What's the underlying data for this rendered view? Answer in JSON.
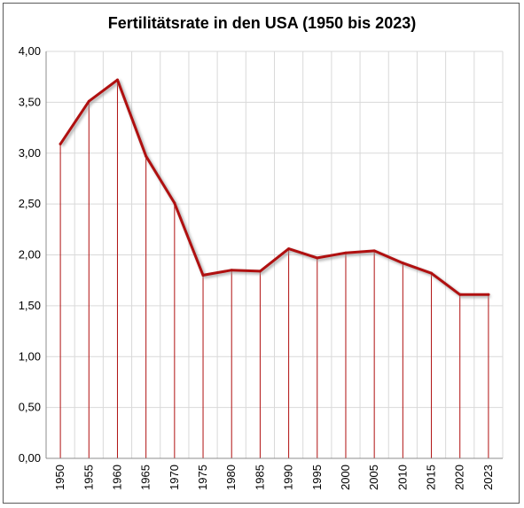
{
  "chart_data": {
    "type": "line",
    "title": "Fertilitätsrate in den USA (1950 bis 2023)",
    "xlabel": "",
    "ylabel": "",
    "categories": [
      "1950",
      "1955",
      "1960",
      "1965",
      "1970",
      "1975",
      "1980",
      "1985",
      "1990",
      "1995",
      "2000",
      "2005",
      "2010",
      "2015",
      "2020",
      "2023"
    ],
    "series": [
      {
        "values": [
          3.09,
          3.51,
          3.72,
          2.97,
          2.51,
          1.8,
          1.85,
          1.84,
          2.06,
          1.97,
          2.02,
          2.04,
          1.92,
          1.82,
          1.61,
          1.61
        ]
      }
    ],
    "ylim": [
      0,
      4
    ],
    "ytick_step": 0.5,
    "yticks": [
      "0,00",
      "0,50",
      "1,00",
      "1,50",
      "2,00",
      "2,50",
      "3,00",
      "3,50",
      "4,00"
    ],
    "grid": true,
    "drop_lines": true,
    "legend": "none",
    "colors": {
      "line": "#b01010",
      "shadow": "#9a9a9a",
      "grid": "#d9d9d9",
      "axis": "#8c8c8c"
    }
  }
}
